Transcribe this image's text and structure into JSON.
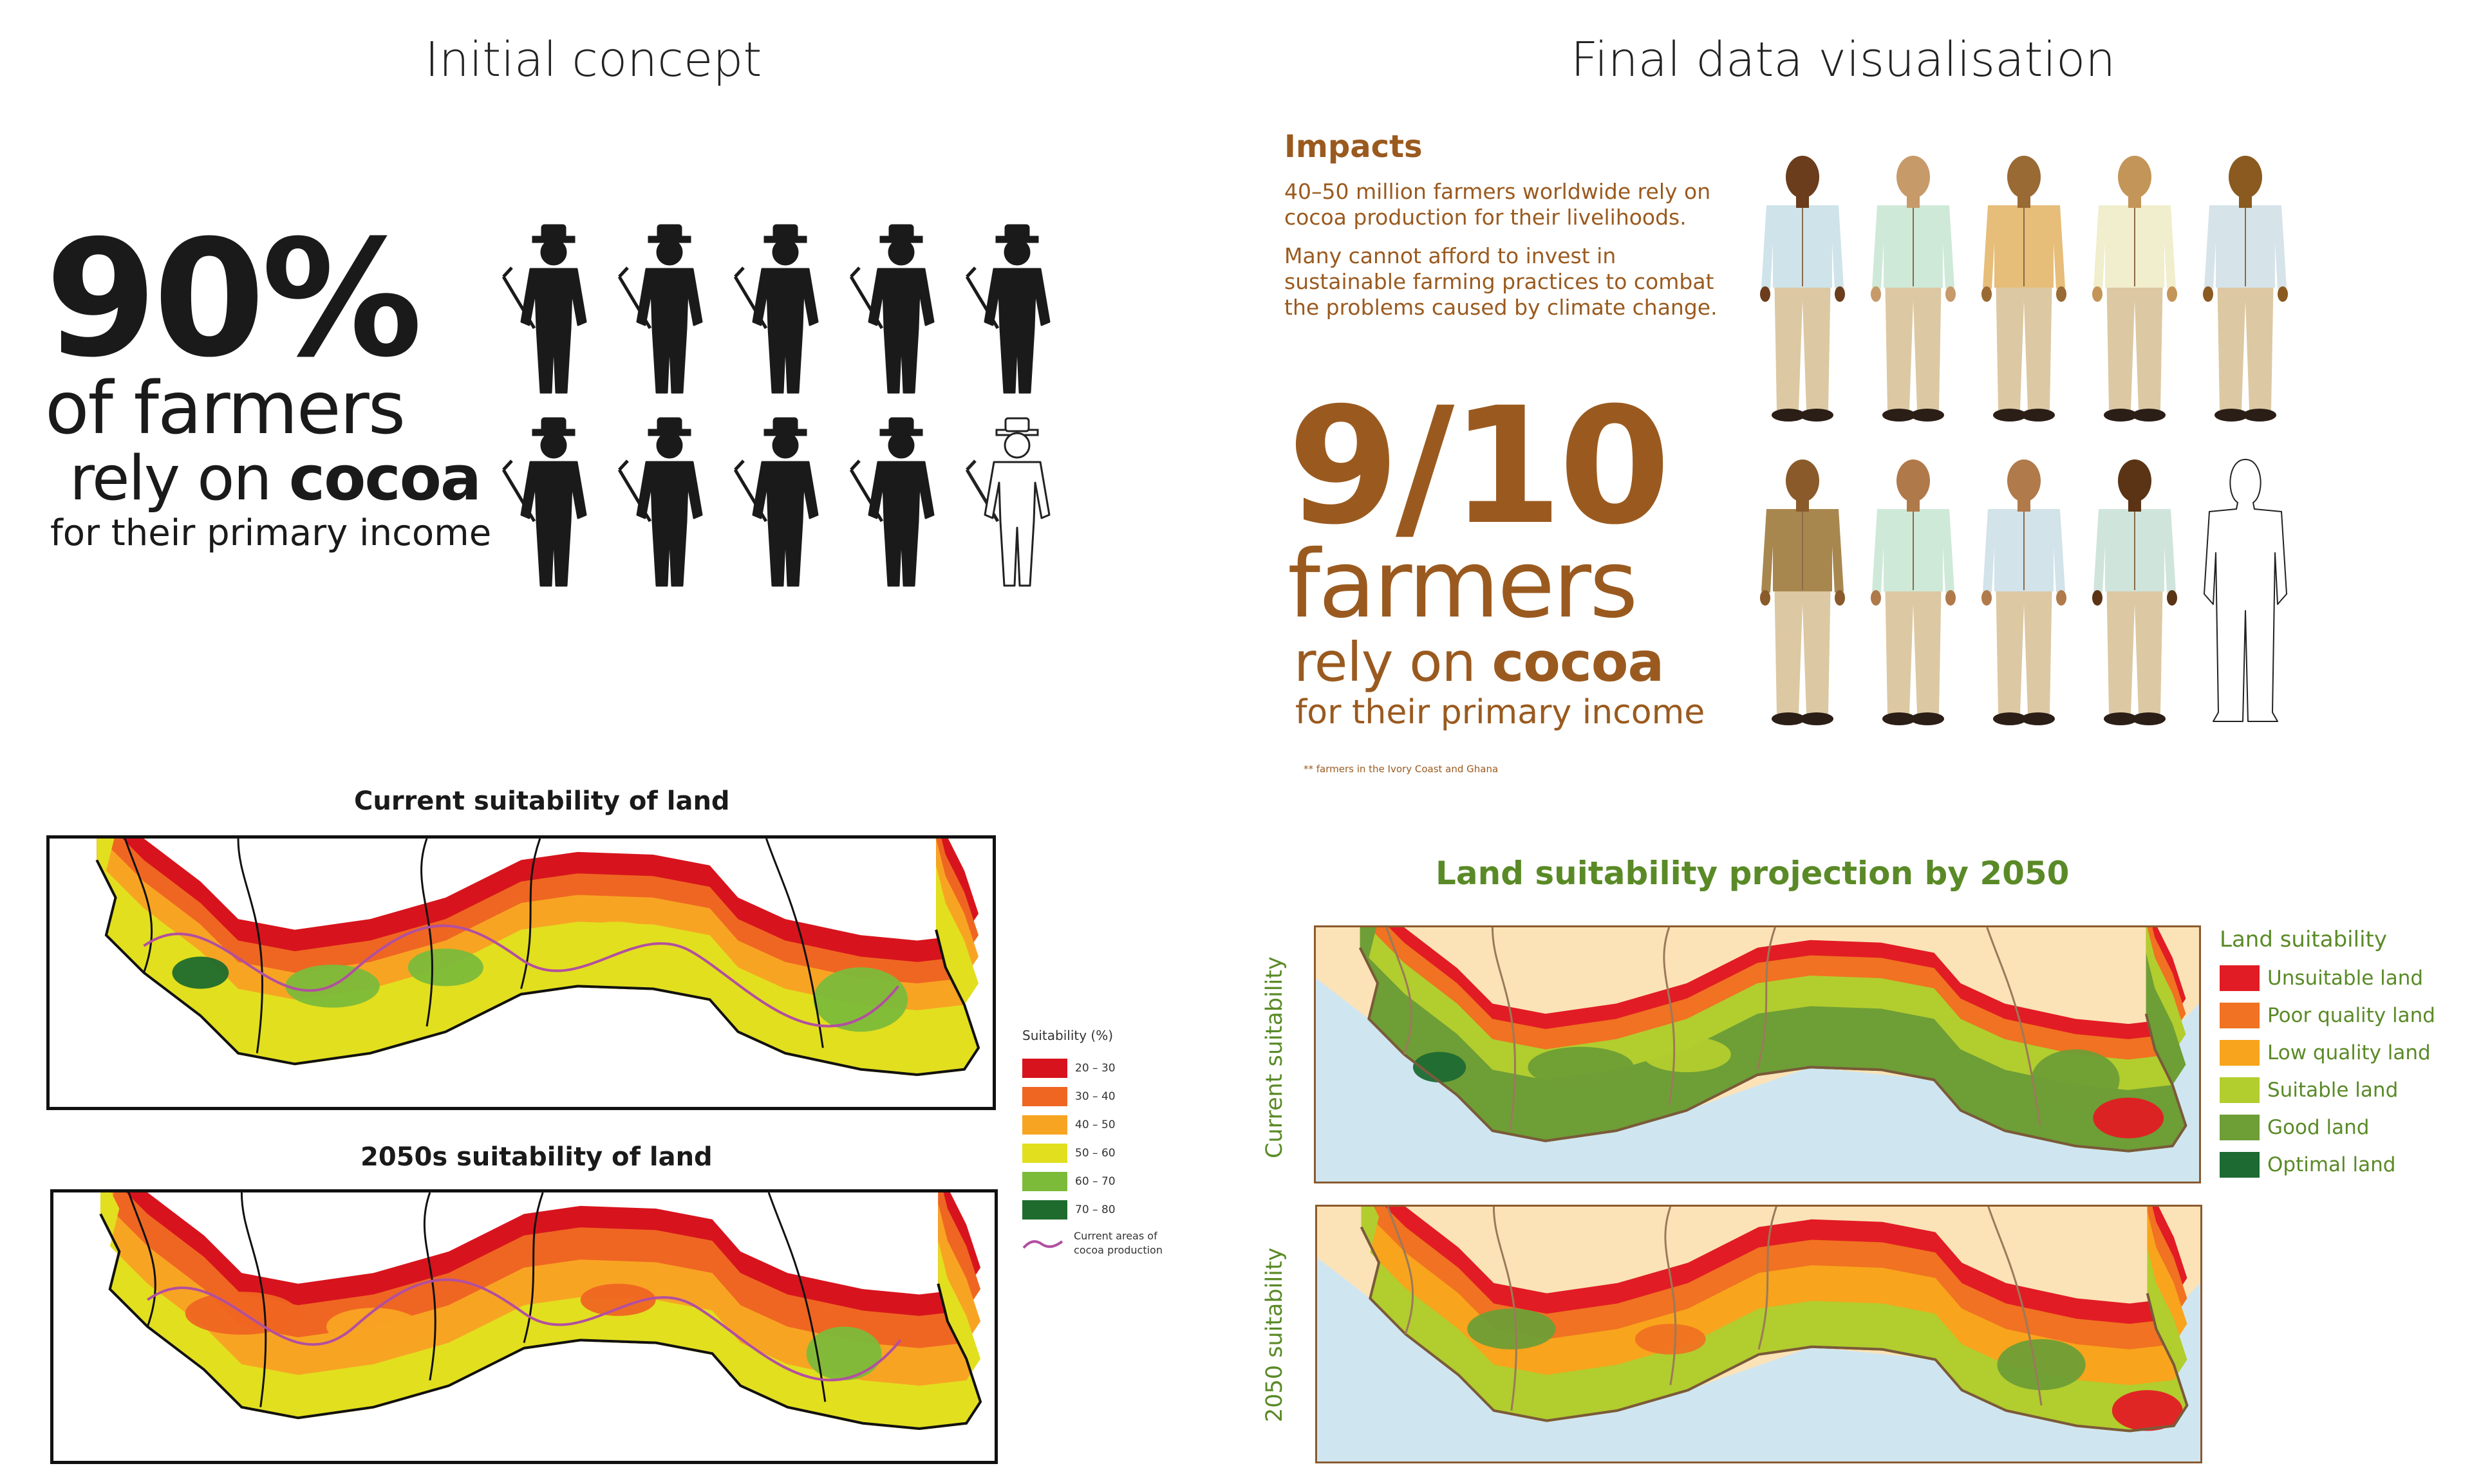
{
  "headings": {
    "left": "Initial concept",
    "right": "Final data visualisation"
  },
  "concept": {
    "big_stat": "90%",
    "line1": "of farmers",
    "line2_prefix": "rely on ",
    "line2_bold": "cocoa",
    "line3": "for their primary income",
    "icon_name": "farmer-silhouette-icon",
    "figures_total": 10,
    "figures_filled": 9,
    "fill_color": "#1a1a1a"
  },
  "impacts": {
    "title": "Impacts",
    "para1": "40–50 million farmers worldwide rely on cocoa production for their livelihoods.",
    "para2": "Many cannot afford to invest in sustainable farming practices to combat the problems caused by climate change.",
    "big_stat": "9/10",
    "line1": "farmers",
    "line2_prefix": "rely on ",
    "line2_bold": "cocoa",
    "line3": "for their primary income",
    "footnote": "** farmers in the Ivory Coast and Ghana",
    "color": "#9a5a1f",
    "icon_name": "farmer-illustration-icon",
    "figures_total": 10,
    "figures_filled": 9
  },
  "concept_maps": {
    "current_title": "Current suitability of land",
    "future_title": "2050s suitability of land",
    "legend_title": "Suitability (%)",
    "legend": [
      {
        "label": "20 – 30",
        "color": "#d7141d"
      },
      {
        "label": "30 – 40",
        "color": "#ef6622"
      },
      {
        "label": "40 – 50",
        "color": "#f8a423"
      },
      {
        "label": "50 – 60",
        "color": "#e2df1f"
      },
      {
        "label": "60 – 70",
        "color": "#7cbb3a"
      },
      {
        "label": "70 – 80",
        "color": "#1f6b2e"
      }
    ],
    "production_label_1": "Current areas of",
    "production_label_2": "cocoa production",
    "production_color": "#b24fa0"
  },
  "final_maps": {
    "title": "Land suitability projection by 2050",
    "label_current": "Current suitability",
    "label_future": "2050 suitability",
    "legend_title": "Land suitability",
    "legend": [
      {
        "label": "Unsuitable land",
        "color": "#e21c24"
      },
      {
        "label": "Poor quality land",
        "color": "#f07222"
      },
      {
        "label": "Low quality land",
        "color": "#f8a41c"
      },
      {
        "label": "Suitable land",
        "color": "#b2cd2e"
      },
      {
        "label": "Good land",
        "color": "#6e9e36"
      },
      {
        "label": "Optimal land",
        "color": "#1d6a33"
      }
    ],
    "green": "#5a8a27"
  }
}
